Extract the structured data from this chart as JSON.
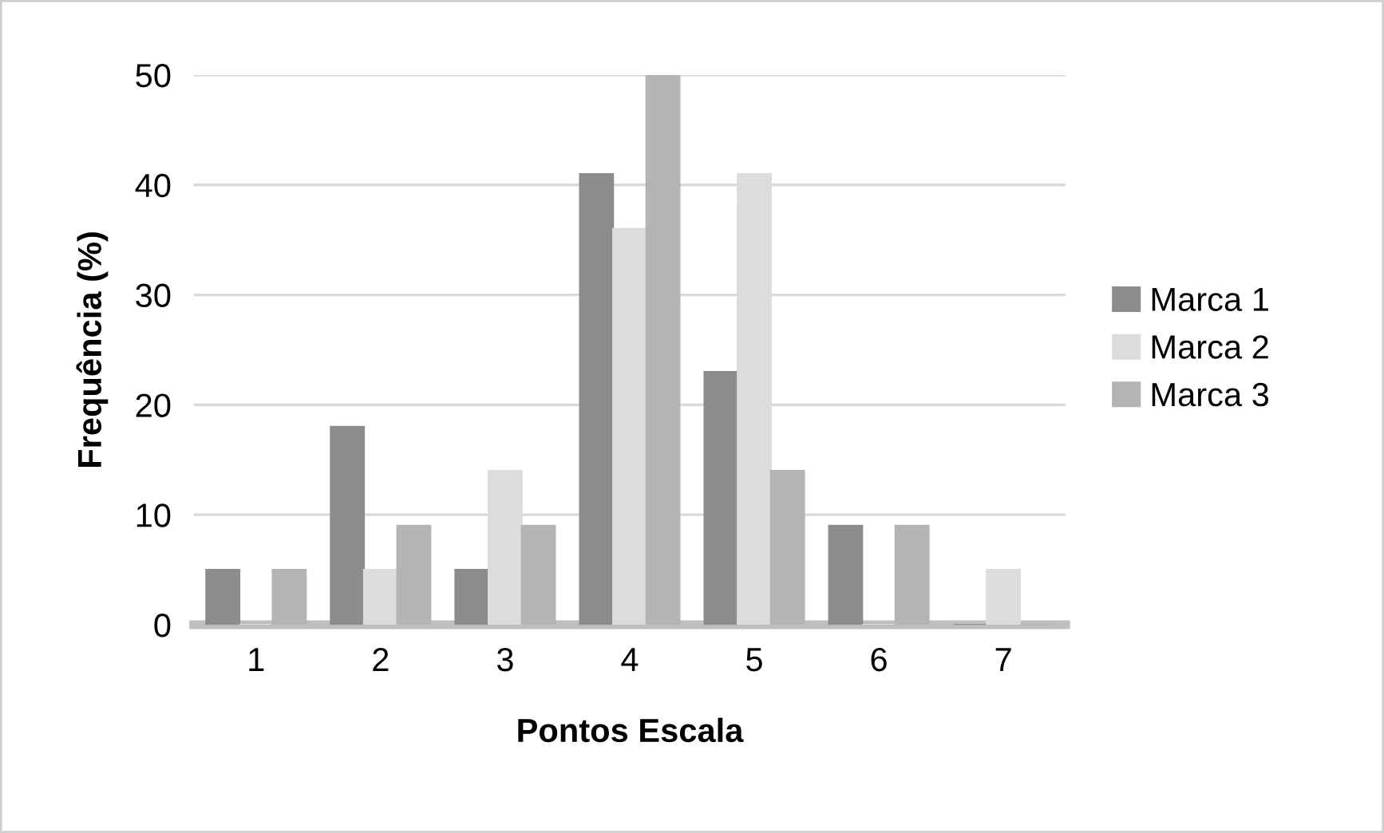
{
  "chart_data": {
    "type": "bar",
    "xlabel": "Pontos Escala",
    "ylabel": "Frequência (%)",
    "categories": [
      "1",
      "2",
      "3",
      "4",
      "5",
      "6",
      "7"
    ],
    "series": [
      {
        "name": "Marca 1",
        "color": "#8c8c8c",
        "values": [
          5,
          18,
          5,
          41,
          23,
          9,
          0
        ]
      },
      {
        "name": "Marca 2",
        "color": "#dcdcdc",
        "values": [
          0,
          5,
          14,
          36,
          41,
          0,
          5
        ]
      },
      {
        "name": "Marca 3",
        "color": "#b4b4b4",
        "values": [
          5,
          9,
          9,
          50,
          14,
          9,
          0
        ]
      }
    ],
    "ylim": [
      0,
      50
    ],
    "yticks": [
      0,
      10,
      20,
      30,
      40,
      50
    ],
    "grid": "y",
    "legend": "right"
  }
}
